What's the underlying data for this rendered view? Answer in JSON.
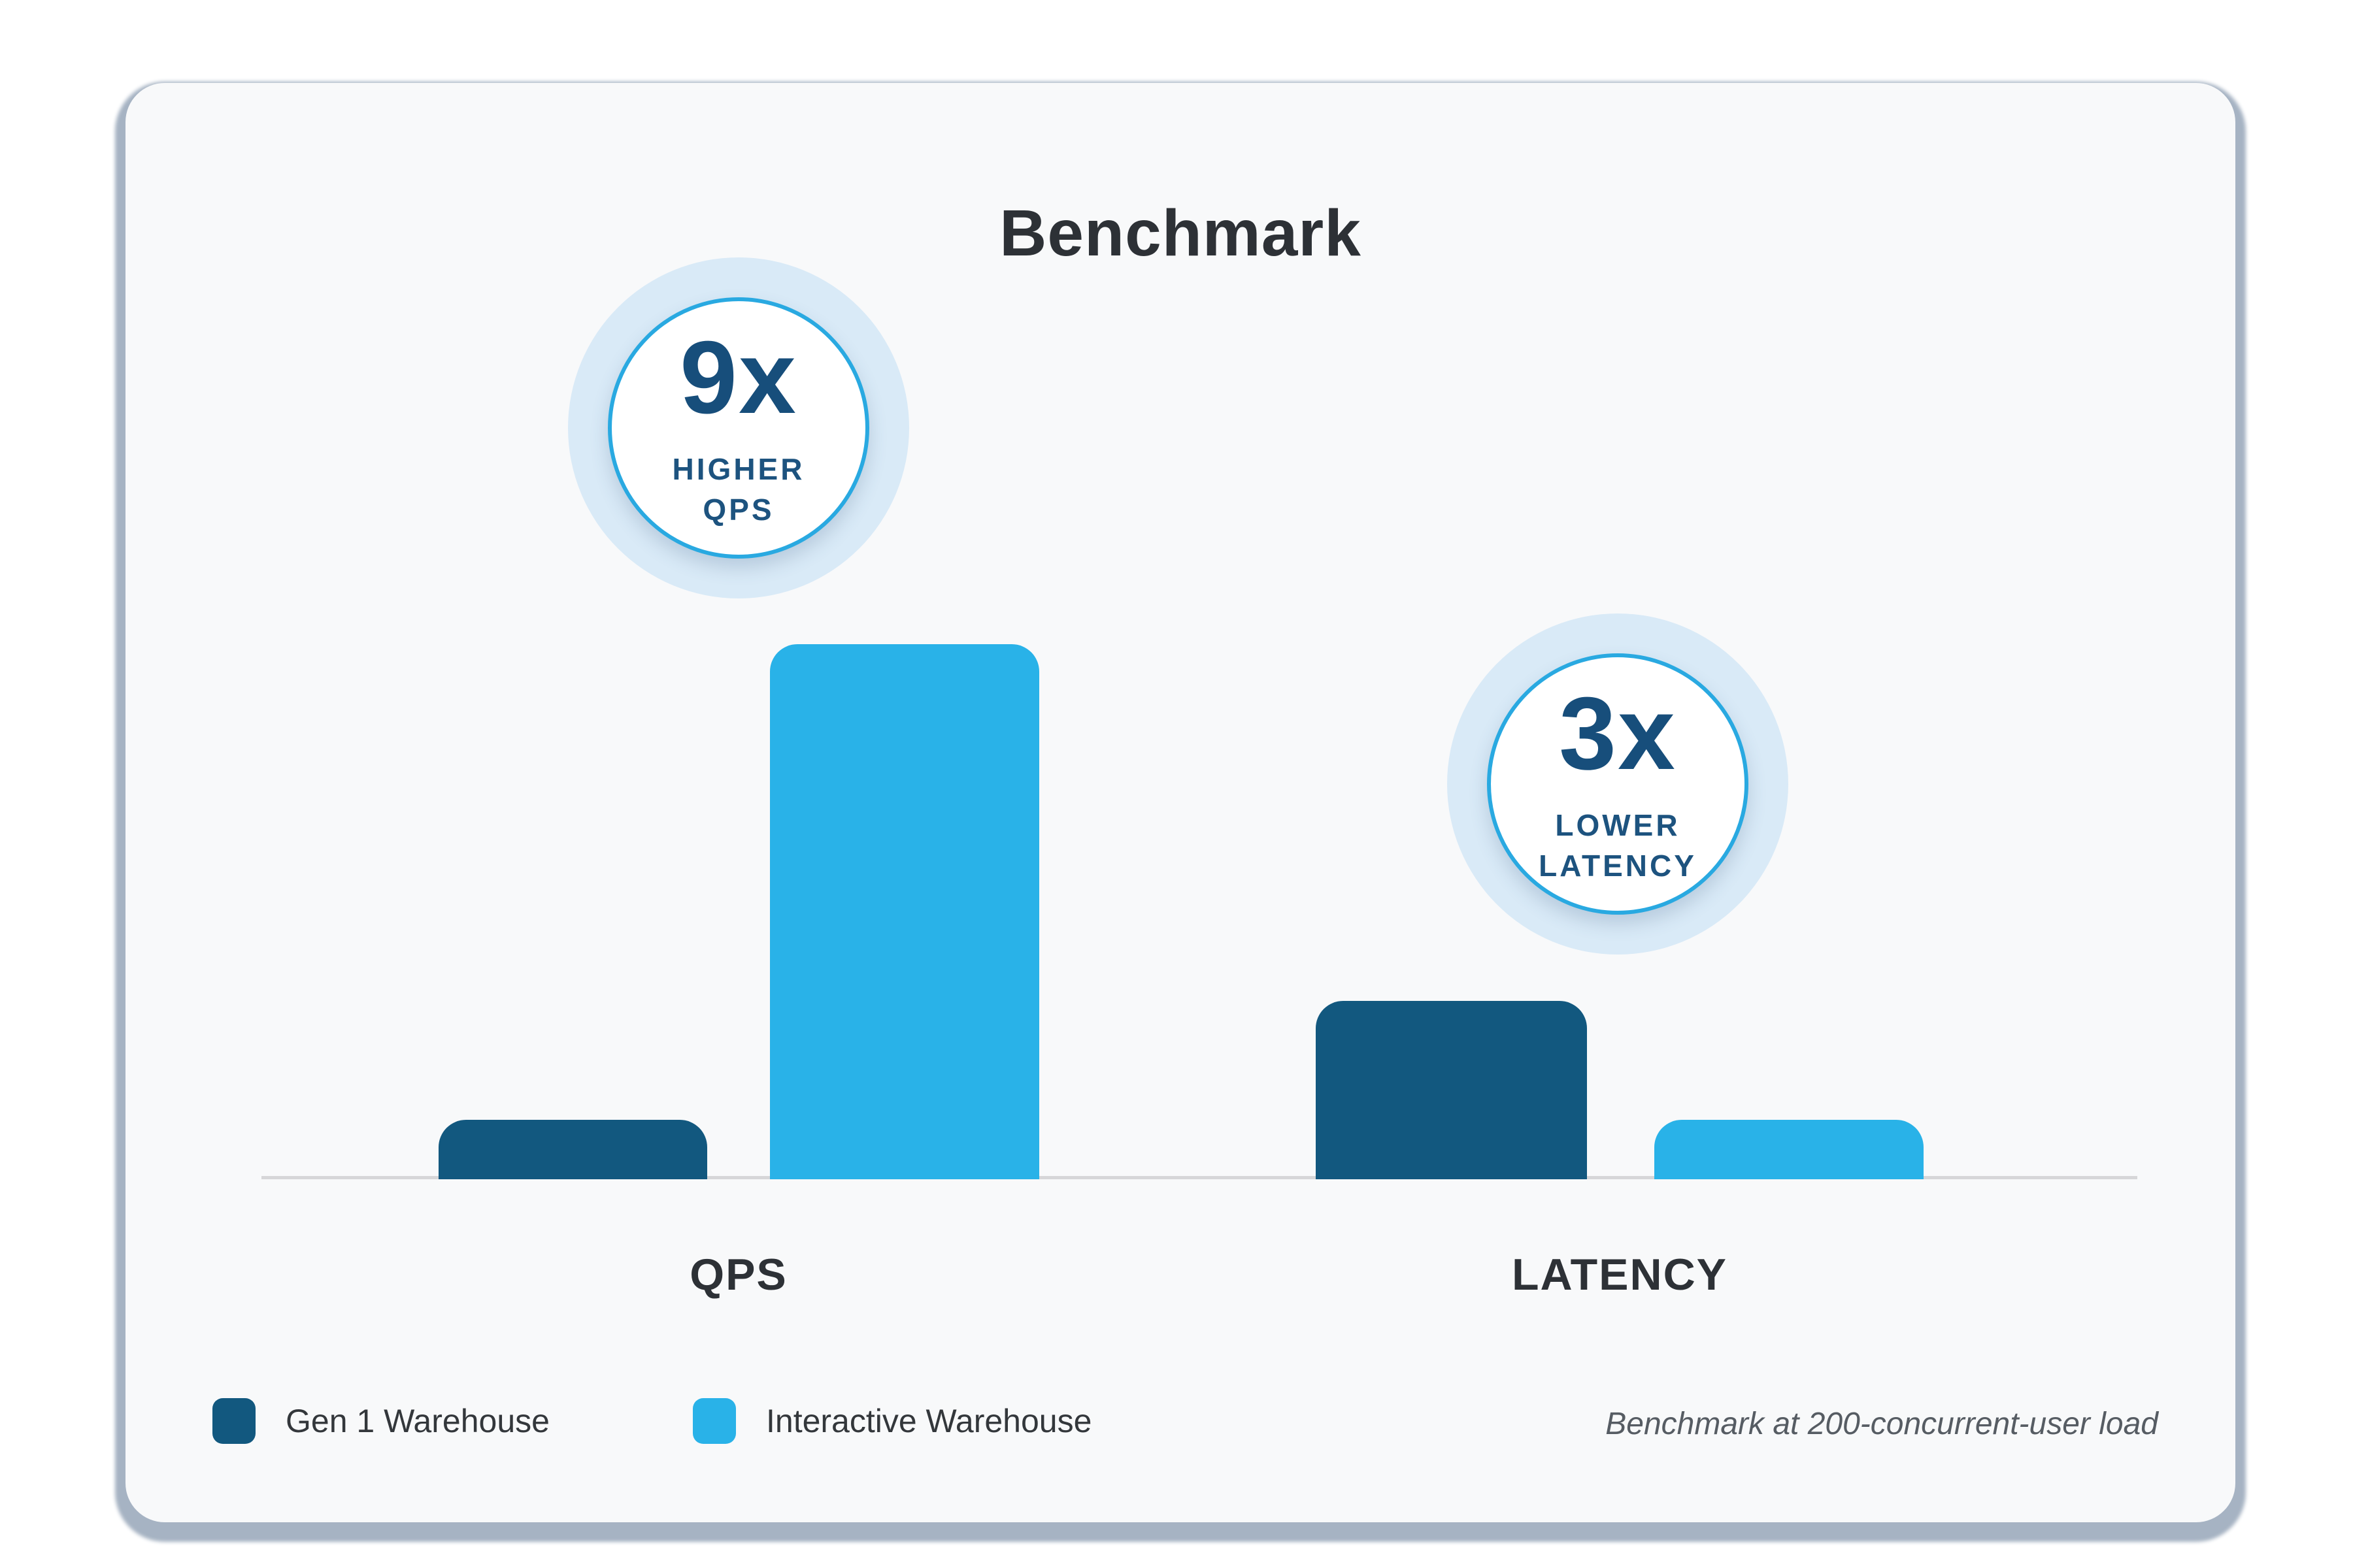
{
  "chart_data": {
    "type": "bar",
    "title": "Benchmark",
    "categories": [
      "QPS",
      "LATENCY"
    ],
    "series": [
      {
        "name": "Gen 1 Warehouse",
        "color": "#12587F",
        "values": [
          1,
          3
        ]
      },
      {
        "name": "Interactive Warehouse",
        "color": "#29B2E8",
        "values": [
          9,
          1
        ]
      }
    ],
    "value_unit": "relative (x)",
    "annotations": [
      {
        "value": "9x",
        "line1": "HIGHER",
        "line2": "QPS"
      },
      {
        "value": "3x",
        "line1": "LOWER",
        "line2": "LATENCY"
      }
    ],
    "caption": "Benchmark at 200-concurrent-user load",
    "axis": {
      "baseline": true,
      "gridlines": false,
      "y_ticks": "none"
    },
    "legend_position": "bottom-left",
    "accent_colors": {
      "badge_ring": "#29A9E1",
      "badge_halo": "#D9EAF7",
      "badge_text": "#174E7B",
      "axis_line": "#D6D6D8",
      "card_background": "#F8F9FA",
      "card_shadow": "#A6B3C3",
      "title_text": "#2D3136"
    }
  }
}
